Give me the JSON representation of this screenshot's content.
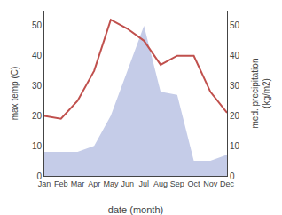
{
  "chart_data": {
    "type": "line",
    "xlabel": "date (month)",
    "ylabel": "max temp (C)",
    "y2label": "med. precipitation\n(kg/m2)",
    "categories": [
      "Jan",
      "Feb",
      "Mar",
      "Apr",
      "May",
      "Jun",
      "Jul",
      "Aug",
      "Sep",
      "Oct",
      "Nov",
      "Dec"
    ],
    "series": [
      {
        "type": "area",
        "axis": "y2",
        "color": "#c5cce8",
        "values": [
          8,
          8,
          8,
          10,
          20,
          35,
          50,
          28,
          27,
          5,
          5,
          7
        ]
      },
      {
        "type": "line",
        "color": "#c0504d",
        "values": [
          20,
          19,
          25,
          35,
          52,
          49,
          45,
          37,
          40,
          40,
          28,
          21
        ]
      }
    ],
    "ylim": [
      0,
      55
    ],
    "yticks": [
      0,
      10,
      20,
      30,
      40,
      50
    ],
    "y2lim": [
      0,
      55
    ],
    "y2ticks": [
      0,
      10,
      20,
      30,
      40,
      50
    ],
    "grid": false
  }
}
